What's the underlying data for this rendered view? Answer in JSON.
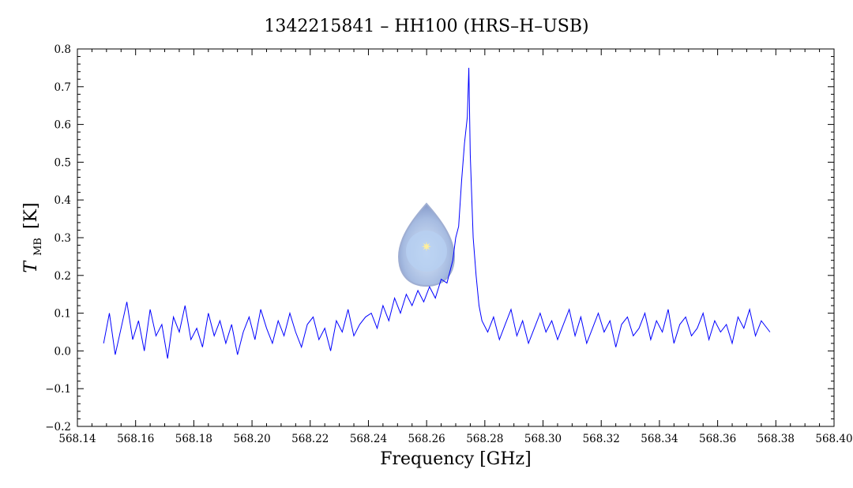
{
  "chart_data": {
    "type": "line",
    "title": "1342215841 – HH100 (HRS–H–USB)",
    "xlabel": "Frequency [GHz]",
    "ylabel_symbol": "T",
    "ylabel_subscript": "MB",
    "ylabel_unit": "[K]",
    "xlim": [
      568.14,
      568.4
    ],
    "ylim": [
      -0.2,
      0.8
    ],
    "x_ticks": [
      "568.14",
      "568.16",
      "568.18",
      "568.20",
      "568.22",
      "568.24",
      "568.26",
      "568.28",
      "568.30",
      "568.32",
      "568.34",
      "568.36",
      "568.38",
      "568.40"
    ],
    "y_ticks": [
      "−0.2",
      "−0.1",
      "0.0",
      "0.1",
      "0.2",
      "0.3",
      "0.4",
      "0.5",
      "0.6",
      "0.7",
      "0.8"
    ],
    "grid": false,
    "legend": "none",
    "series": [
      {
        "color": "#0000ff",
        "x": [
          568.149,
          568.151,
          568.153,
          568.155,
          568.157,
          568.159,
          568.161,
          568.163,
          568.165,
          568.167,
          568.169,
          568.171,
          568.173,
          568.175,
          568.177,
          568.179,
          568.181,
          568.183,
          568.185,
          568.187,
          568.189,
          568.191,
          568.193,
          568.195,
          568.197,
          568.199,
          568.201,
          568.203,
          568.205,
          568.207,
          568.209,
          568.211,
          568.213,
          568.215,
          568.217,
          568.219,
          568.221,
          568.223,
          568.225,
          568.227,
          568.229,
          568.231,
          568.233,
          568.235,
          568.237,
          568.239,
          568.241,
          568.243,
          568.245,
          568.247,
          568.249,
          568.251,
          568.253,
          568.255,
          568.257,
          568.259,
          568.261,
          568.263,
          568.265,
          568.267,
          568.269,
          568.27,
          568.271,
          568.272,
          568.273,
          568.274,
          568.2745,
          568.275,
          568.276,
          568.277,
          568.278,
          568.279,
          568.281,
          568.283,
          568.285,
          568.287,
          568.289,
          568.291,
          568.293,
          568.295,
          568.297,
          568.299,
          568.301,
          568.303,
          568.305,
          568.307,
          568.309,
          568.311,
          568.313,
          568.315,
          568.317,
          568.319,
          568.321,
          568.323,
          568.325,
          568.327,
          568.329,
          568.331,
          568.333,
          568.335,
          568.337,
          568.339,
          568.341,
          568.343,
          568.345,
          568.347,
          568.349,
          568.351,
          568.353,
          568.355,
          568.357,
          568.359,
          568.361,
          568.363,
          568.365,
          568.367,
          568.369,
          568.371,
          568.373,
          568.375,
          568.378
        ],
        "y": [
          0.02,
          0.1,
          -0.01,
          0.06,
          0.13,
          0.03,
          0.08,
          0.0,
          0.11,
          0.04,
          0.07,
          -0.02,
          0.09,
          0.05,
          0.12,
          0.03,
          0.06,
          0.01,
          0.1,
          0.04,
          0.08,
          0.02,
          0.07,
          -0.01,
          0.05,
          0.09,
          0.03,
          0.11,
          0.06,
          0.02,
          0.08,
          0.04,
          0.1,
          0.05,
          0.01,
          0.07,
          0.09,
          0.03,
          0.06,
          0.0,
          0.08,
          0.05,
          0.11,
          0.04,
          0.07,
          0.09,
          0.1,
          0.06,
          0.12,
          0.08,
          0.14,
          0.1,
          0.15,
          0.12,
          0.16,
          0.13,
          0.17,
          0.14,
          0.19,
          0.18,
          0.24,
          0.3,
          0.33,
          0.45,
          0.55,
          0.62,
          0.75,
          0.52,
          0.3,
          0.2,
          0.12,
          0.08,
          0.05,
          0.09,
          0.03,
          0.07,
          0.11,
          0.04,
          0.08,
          0.02,
          0.06,
          0.1,
          0.05,
          0.08,
          0.03,
          0.07,
          0.11,
          0.04,
          0.09,
          0.02,
          0.06,
          0.1,
          0.05,
          0.08,
          0.01,
          0.07,
          0.09,
          0.04,
          0.06,
          0.1,
          0.03,
          0.08,
          0.05,
          0.11,
          0.02,
          0.07,
          0.09,
          0.04,
          0.06,
          0.1,
          0.03,
          0.08,
          0.05,
          0.07,
          0.02,
          0.09,
          0.06,
          0.11,
          0.04,
          0.08,
          0.05
        ]
      }
    ]
  }
}
